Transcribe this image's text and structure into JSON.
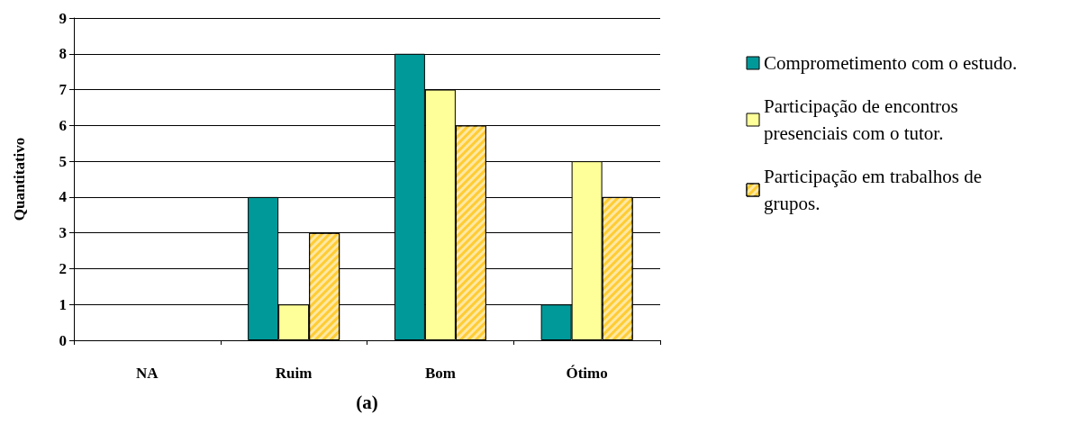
{
  "chart_data": {
    "type": "bar",
    "xlabel": "(a)",
    "ylabel": "Quantitativo",
    "categories": [
      "NA",
      "Ruim",
      "Bom",
      "Ótimo"
    ],
    "series": [
      {
        "name": "Comprometimento com o estudo.",
        "color": "#009999",
        "values": [
          0,
          4,
          8,
          1
        ]
      },
      {
        "name": "Participação de encontros presenciais com o tutor.",
        "color": "#ffff99",
        "values": [
          0,
          1,
          7,
          5
        ]
      },
      {
        "name": "Participação em trabalhos de grupos.",
        "color": "#ffcc33",
        "values": [
          0,
          3,
          6,
          4
        ]
      }
    ],
    "ylim": [
      0,
      9
    ],
    "yticks": [
      0,
      1,
      2,
      3,
      4,
      5,
      6,
      7,
      8,
      9
    ],
    "grid": "y",
    "legend": "right"
  }
}
